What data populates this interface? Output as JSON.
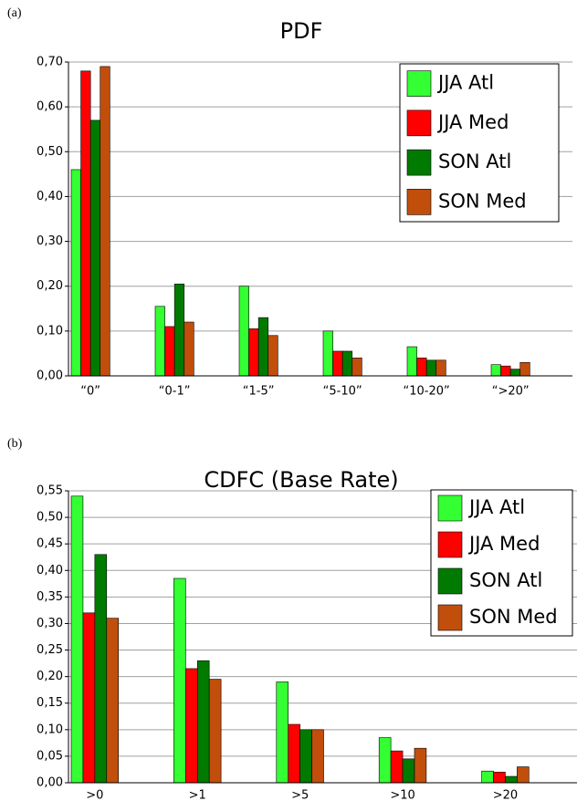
{
  "chart_data": [
    {
      "type": "bar",
      "panel_label": "(a)",
      "title": "PDF",
      "categories": [
        "“0”",
        "“0-1”",
        "“1-5”",
        "“5-10”",
        "“10-20”",
        "“>20”"
      ],
      "series": [
        {
          "name": "JJA Atl",
          "color": "#33ff33",
          "values": [
            0.46,
            0.155,
            0.2,
            0.1,
            0.065,
            0.025
          ]
        },
        {
          "name": "JJA Med",
          "color": "#ff0000",
          "values": [
            0.68,
            0.11,
            0.105,
            0.055,
            0.04,
            0.022
          ]
        },
        {
          "name": "SON Atl",
          "color": "#007a00",
          "values": [
            0.57,
            0.205,
            0.13,
            0.055,
            0.035,
            0.015
          ]
        },
        {
          "name": "SON Med",
          "color": "#c24e0c",
          "values": [
            0.69,
            0.12,
            0.09,
            0.04,
            0.035,
            0.03
          ]
        }
      ],
      "ylim": [
        0,
        0.7
      ],
      "yticks": [
        {
          "value": 0,
          "label": "0,00"
        },
        {
          "value": 0.1,
          "label": "0,10"
        },
        {
          "value": 0.2,
          "label": "0,20"
        },
        {
          "value": 0.3,
          "label": "0,30"
        },
        {
          "value": 0.4,
          "label": "0,40"
        },
        {
          "value": 0.5,
          "label": "0,50"
        },
        {
          "value": 0.6,
          "label": "0,60"
        },
        {
          "value": 0.7,
          "label": "0,70"
        }
      ],
      "grid": true,
      "legend": "top-right"
    },
    {
      "type": "bar",
      "panel_label": "(b)",
      "title": "CDFC  (Base Rate)",
      "categories": [
        ">0",
        ">1",
        ">5",
        ">10",
        ">20"
      ],
      "series": [
        {
          "name": "JJA Atl",
          "color": "#33ff33",
          "values": [
            0.54,
            0.385,
            0.19,
            0.085,
            0.022
          ]
        },
        {
          "name": "JJA Med",
          "color": "#ff0000",
          "values": [
            0.32,
            0.215,
            0.11,
            0.06,
            0.02
          ]
        },
        {
          "name": "SON Atl",
          "color": "#007a00",
          "values": [
            0.43,
            0.23,
            0.1,
            0.045,
            0.012
          ]
        },
        {
          "name": "SON Med",
          "color": "#c24e0c",
          "values": [
            0.31,
            0.195,
            0.1,
            0.065,
            0.03
          ]
        }
      ],
      "ylim": [
        0,
        0.55
      ],
      "yticks": [
        {
          "value": 0,
          "label": "0,00"
        },
        {
          "value": 0.05,
          "label": "0,05"
        },
        {
          "value": 0.1,
          "label": "0,10"
        },
        {
          "value": 0.15,
          "label": "0,15"
        },
        {
          "value": 0.2,
          "label": "0,20"
        },
        {
          "value": 0.25,
          "label": "0,25"
        },
        {
          "value": 0.3,
          "label": "0,30"
        },
        {
          "value": 0.35,
          "label": "0,35"
        },
        {
          "value": 0.4,
          "label": "0,40"
        },
        {
          "value": 0.45,
          "label": "0,45"
        },
        {
          "value": 0.5,
          "label": "0,50"
        },
        {
          "value": 0.55,
          "label": "0,55"
        }
      ],
      "grid": true,
      "legend": "top-right"
    }
  ]
}
